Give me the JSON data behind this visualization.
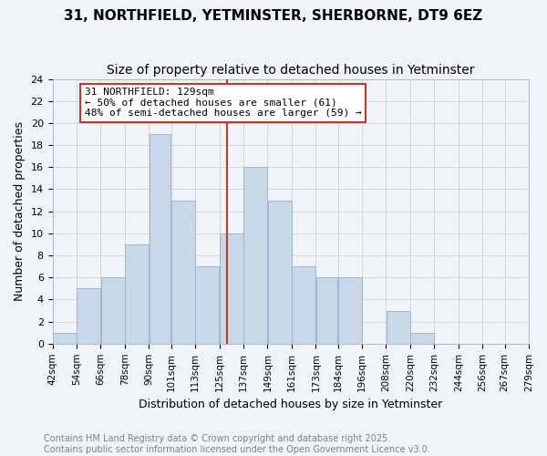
{
  "title": "31, NORTHFIELD, YETMINSTER, SHERBORNE, DT9 6EZ",
  "subtitle": "Size of property relative to detached houses in Yetminster",
  "xlabel": "Distribution of detached houses by size in Yetminster",
  "ylabel": "Number of detached properties",
  "bar_color": "#c8d8e8",
  "bar_edge_color": "#a0b8cc",
  "bins": [
    42,
    54,
    66,
    78,
    90,
    101,
    113,
    125,
    137,
    149,
    161,
    173,
    184,
    196,
    208,
    220,
    232,
    244,
    256,
    267,
    279
  ],
  "bin_labels": [
    "42sqm",
    "54sqm",
    "66sqm",
    "78sqm",
    "90sqm",
    "101sqm",
    "113sqm",
    "125sqm",
    "137sqm",
    "149sqm",
    "161sqm",
    "173sqm",
    "184sqm",
    "196sqm",
    "208sqm",
    "220sqm",
    "232sqm",
    "244sqm",
    "256sqm",
    "267sqm",
    "279sqm"
  ],
  "counts": [
    1,
    5,
    6,
    9,
    19,
    13,
    7,
    10,
    16,
    13,
    7,
    6,
    6,
    0,
    3,
    1,
    0,
    0,
    0,
    0
  ],
  "property_line_x": 129,
  "vline_color": "#c0392b",
  "annotation_text": "31 NORTHFIELD: 129sqm\n← 50% of detached houses are smaller (61)\n48% of semi-detached houses are larger (59) →",
  "annotation_box_color": "#c0392b",
  "ylim": [
    0,
    24
  ],
  "yticks": [
    0,
    2,
    4,
    6,
    8,
    10,
    12,
    14,
    16,
    18,
    20,
    22,
    24
  ],
  "grid_color": "#d0d8e0",
  "bg_color": "#f0f4f8",
  "footer_line1": "Contains HM Land Registry data © Crown copyright and database right 2025.",
  "footer_line2": "Contains public sector information licensed under the Open Government Licence v3.0.",
  "title_fontsize": 11,
  "subtitle_fontsize": 10,
  "axis_label_fontsize": 9,
  "tick_fontsize": 8,
  "footer_fontsize": 7
}
